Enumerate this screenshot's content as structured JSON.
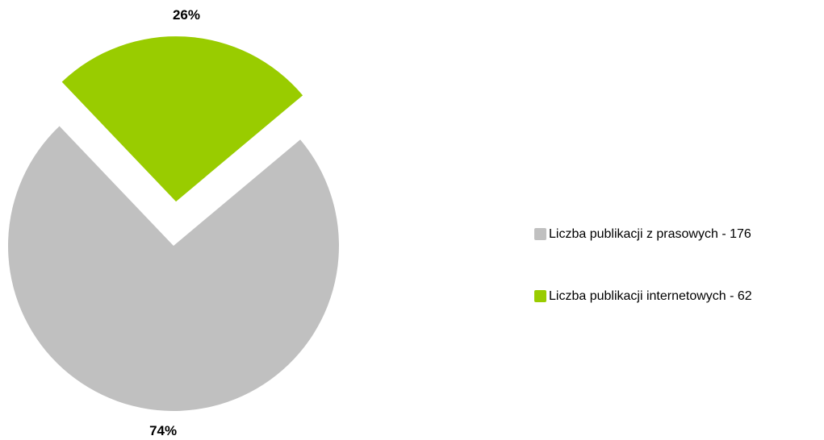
{
  "chart_data": {
    "type": "pie",
    "categories": [
      "Liczba publikacji z prasowych - 176",
      "Liczba publikacji internetowych - 62"
    ],
    "values": [
      74,
      26
    ],
    "value_labels": [
      "74%",
      "26%"
    ],
    "colors": [
      "#c0c0c0",
      "#99cc00"
    ],
    "legend": "right"
  }
}
